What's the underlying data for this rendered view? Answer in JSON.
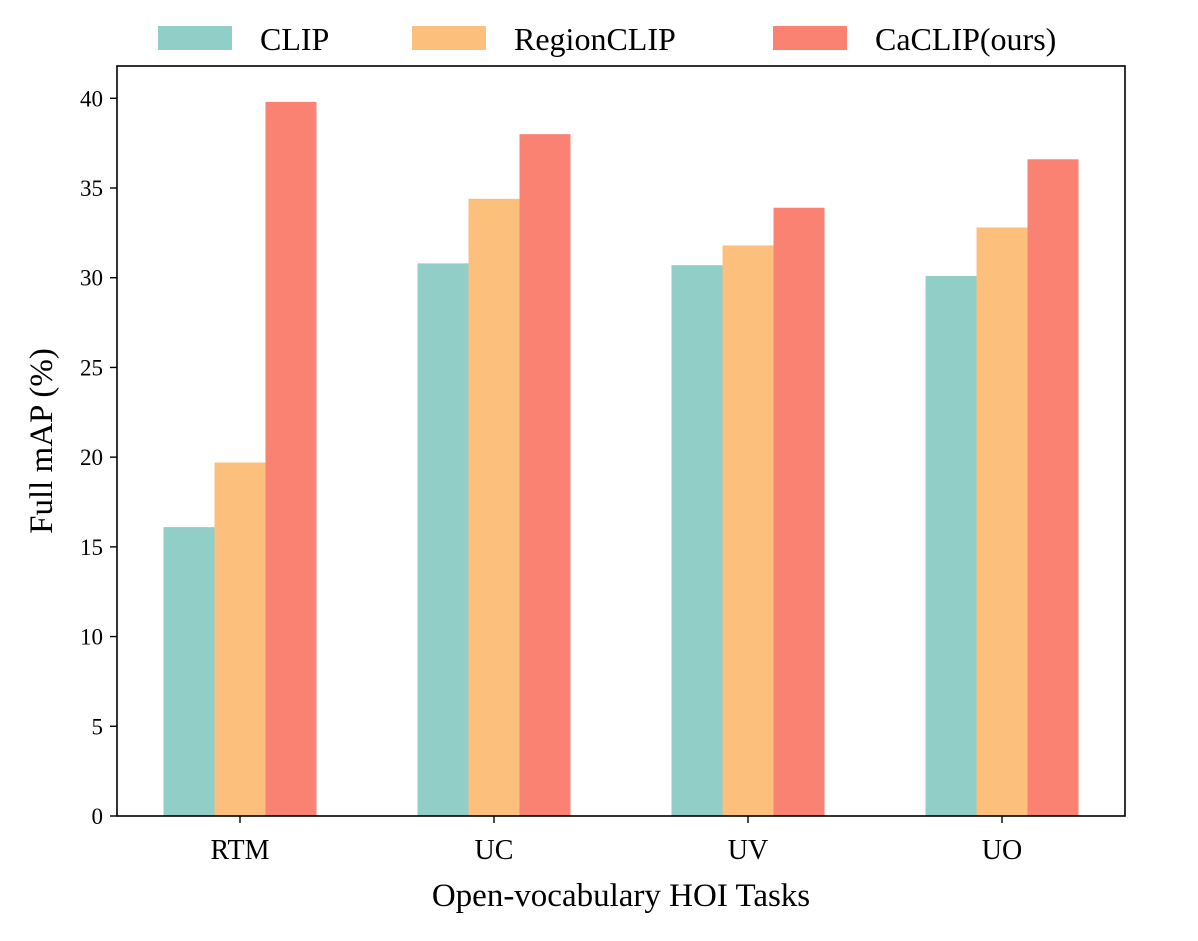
{
  "chart_data": {
    "type": "bar",
    "categories": [
      "RTM",
      "UC",
      "UV",
      "UO"
    ],
    "series": [
      {
        "name": "CLIP",
        "color": "#92CEC8",
        "values": [
          16.1,
          30.8,
          30.7,
          30.1
        ]
      },
      {
        "name": "RegionCLIP",
        "color": "#FDBF7C",
        "values": [
          19.7,
          34.4,
          31.8,
          32.8
        ]
      },
      {
        "name": "CaCLIP(ours)",
        "color": "#F98272",
        "values": [
          39.8,
          38.0,
          33.9,
          36.6
        ]
      }
    ],
    "title": "",
    "xlabel": "Open-vocabulary HOI Tasks",
    "ylabel": "Full mAP (%)",
    "ylim": [
      0,
      41.8
    ],
    "yticks": [
      0,
      5,
      10,
      15,
      20,
      25,
      30,
      35,
      40
    ],
    "grid": false,
    "legend_position": "top"
  }
}
